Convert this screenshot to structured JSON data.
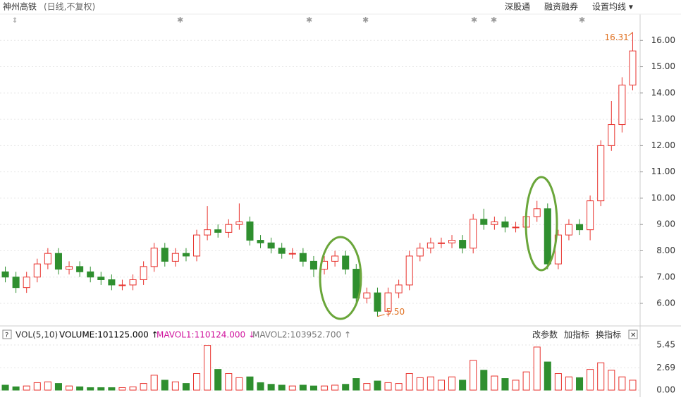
{
  "chart_data": {
    "type": "candlestick",
    "title": "神州高铁",
    "subtitle": "(日线,不复权)",
    "menu": [
      "深股通",
      "融资融券",
      "设置均线 ▾"
    ],
    "open": [
      7.2,
      7.0,
      6.6,
      7.0,
      7.5,
      7.9,
      7.3,
      7.4,
      7.2,
      7.0,
      6.9,
      6.7,
      6.7,
      6.9,
      7.4,
      8.1,
      7.6,
      7.9,
      7.8,
      8.6,
      8.8,
      8.7,
      9.0,
      9.1,
      8.4,
      8.3,
      8.1,
      7.9,
      7.9,
      7.6,
      7.3,
      7.6,
      7.8,
      7.3,
      6.2,
      6.4,
      5.7,
      6.4,
      6.7,
      7.8,
      8.1,
      8.3,
      8.3,
      8.4,
      8.1,
      9.2,
      9.0,
      9.1,
      8.9,
      8.9,
      9.3,
      9.6,
      7.5,
      8.6,
      9.0,
      8.8,
      9.9,
      12.0,
      12.8,
      14.3
    ],
    "high": [
      7.4,
      7.2,
      7.2,
      7.7,
      8.1,
      8.1,
      7.6,
      7.6,
      7.4,
      7.2,
      7.1,
      6.9,
      7.1,
      7.6,
      8.3,
      8.3,
      8.1,
      8.1,
      8.8,
      9.7,
      9.0,
      9.2,
      9.8,
      9.3,
      8.6,
      8.5,
      8.3,
      8.1,
      8.1,
      7.8,
      7.8,
      8.0,
      8.0,
      7.5,
      6.6,
      6.6,
      6.6,
      6.9,
      8.0,
      8.3,
      8.5,
      8.5,
      8.6,
      8.6,
      9.4,
      9.6,
      9.3,
      9.3,
      9.1,
      9.5,
      9.9,
      9.8,
      8.8,
      9.2,
      9.2,
      10.1,
      12.2,
      13.7,
      14.6,
      16.31
    ],
    "low": [
      6.8,
      6.4,
      6.4,
      6.8,
      7.3,
      7.1,
      7.1,
      7.0,
      6.8,
      6.7,
      6.5,
      6.5,
      6.5,
      6.7,
      7.2,
      7.4,
      7.4,
      7.6,
      7.6,
      8.4,
      8.5,
      8.5,
      8.8,
      8.2,
      8.1,
      7.9,
      7.7,
      7.7,
      7.4,
      7.0,
      7.1,
      7.4,
      7.1,
      5.9,
      6.0,
      5.5,
      5.5,
      6.2,
      6.5,
      7.6,
      7.9,
      8.1,
      8.1,
      7.9,
      7.9,
      8.8,
      8.8,
      8.7,
      8.7,
      8.7,
      9.1,
      7.3,
      7.3,
      8.4,
      8.6,
      8.4,
      9.7,
      11.8,
      12.5,
      14.1
    ],
    "close": [
      7.0,
      6.6,
      7.0,
      7.5,
      7.9,
      7.3,
      7.4,
      7.2,
      7.0,
      6.9,
      6.7,
      6.7,
      6.9,
      7.4,
      8.1,
      7.6,
      7.9,
      7.8,
      8.6,
      8.8,
      8.7,
      9.0,
      9.1,
      8.4,
      8.3,
      8.1,
      7.9,
      7.9,
      7.6,
      7.3,
      7.6,
      7.8,
      7.3,
      6.2,
      6.4,
      5.7,
      6.4,
      6.7,
      7.8,
      8.1,
      8.3,
      8.3,
      8.4,
      8.1,
      9.2,
      9.0,
      9.1,
      8.9,
      8.9,
      9.3,
      9.6,
      7.5,
      8.6,
      9.0,
      8.8,
      9.9,
      12.0,
      12.8,
      14.3,
      15.6
    ],
    "volume": [
      0.6,
      0.4,
      0.5,
      0.9,
      1.0,
      0.8,
      0.5,
      0.4,
      0.3,
      0.3,
      0.3,
      0.3,
      0.4,
      0.8,
      1.8,
      1.2,
      1.0,
      0.8,
      2.0,
      5.4,
      2.5,
      2.0,
      1.5,
      1.6,
      0.9,
      0.7,
      0.6,
      0.5,
      0.6,
      0.5,
      0.5,
      0.6,
      0.7,
      1.4,
      0.8,
      1.1,
      0.9,
      0.8,
      2.0,
      1.5,
      1.6,
      1.2,
      1.6,
      1.2,
      3.6,
      2.4,
      1.7,
      1.4,
      1.2,
      2.2,
      5.2,
      3.4,
      2.0,
      1.6,
      1.5,
      2.5,
      3.3,
      2.4,
      1.6,
      1.2
    ],
    "up_color": "#e8332e",
    "down_color": "#2f8f2f",
    "ylim": [
      5.33,
      17.0
    ],
    "yticks": [
      {
        "value": 6,
        "label": "6.00"
      },
      {
        "value": 7,
        "label": "7.00"
      },
      {
        "value": 8,
        "label": "8.00"
      },
      {
        "value": 9,
        "label": "9.00"
      },
      {
        "value": 10,
        "label": "10.00"
      },
      {
        "value": 11,
        "label": "11.00"
      },
      {
        "value": 12,
        "label": "12.00"
      },
      {
        "value": 13,
        "label": "13.00"
      },
      {
        "value": 14,
        "label": "14.00"
      },
      {
        "value": 15,
        "label": "15.00"
      },
      {
        "value": 16,
        "label": "16.00"
      }
    ],
    "grid": true,
    "annotations": [
      {
        "text": "16.31",
        "candle": 59
      },
      {
        "text": "5.50",
        "candle": 35
      }
    ],
    "volume_panel": {
      "indicator": "VOL(5,10)",
      "volume_label": "VOLUME:101125.000 ↑",
      "mavol1_label": "MAVOL1:110124.000 ↓",
      "mavol2_label": "MAVOL2:103952.700 ↑",
      "buttons": [
        "改参数",
        "加指标",
        "换指标"
      ],
      "ylim": [
        0,
        5.45
      ],
      "yticks": [
        {
          "value": 0,
          "label": "0.00"
        },
        {
          "value": 2.69,
          "label": "2.69"
        },
        {
          "value": 5.45,
          "label": "5.45"
        }
      ]
    }
  }
}
